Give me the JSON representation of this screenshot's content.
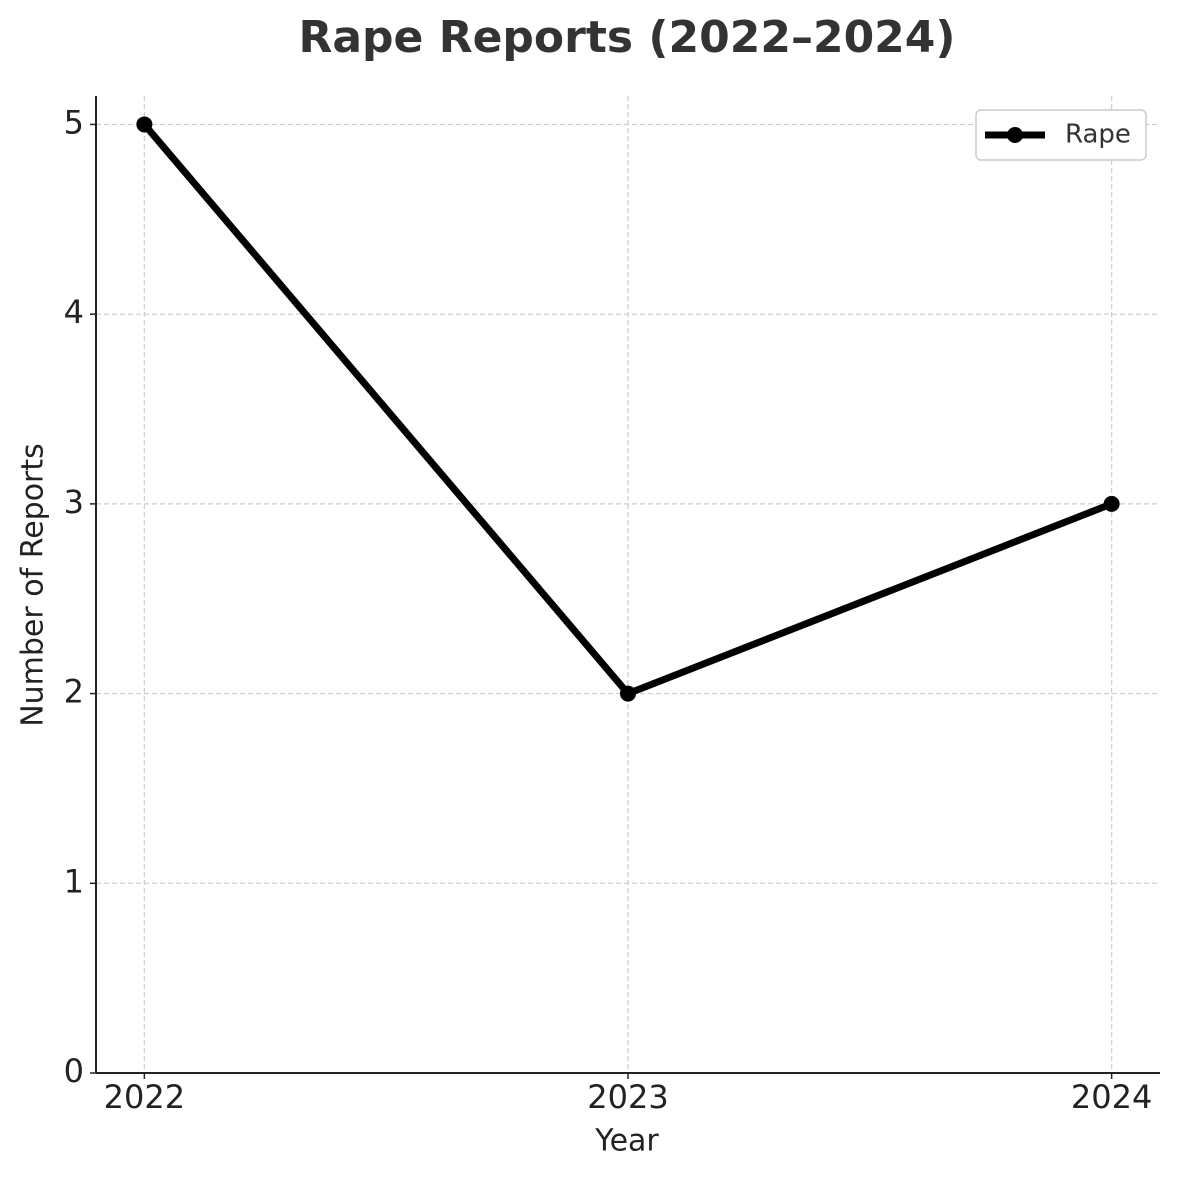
{
  "chart_data": {
    "type": "line",
    "title": "Rape Reports (2022–2024)",
    "x_label": "Year",
    "y_label": "Number of Reports",
    "x": [
      2022,
      2023,
      2024
    ],
    "series": [
      {
        "name": "Rape",
        "color": "#000000",
        "values": [
          5,
          2,
          3
        ]
      }
    ],
    "xlim": [
      2021.9,
      2024.1
    ],
    "xticks": [
      2022,
      2023,
      2024
    ],
    "ylim": [
      0,
      5.15
    ],
    "yticks": [
      0,
      1,
      2,
      3,
      4,
      5
    ],
    "grid": true,
    "legend": "upper right"
  }
}
